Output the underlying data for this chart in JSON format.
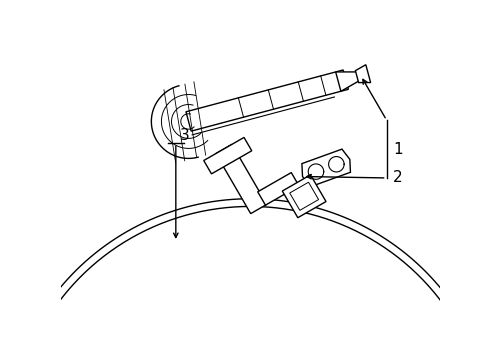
{
  "bg_color": "#ffffff",
  "line_color": "#000000",
  "fig_width": 4.89,
  "fig_height": 3.6,
  "dpi": 100,
  "label_1": "1",
  "label_2": "2",
  "label_3": "3"
}
